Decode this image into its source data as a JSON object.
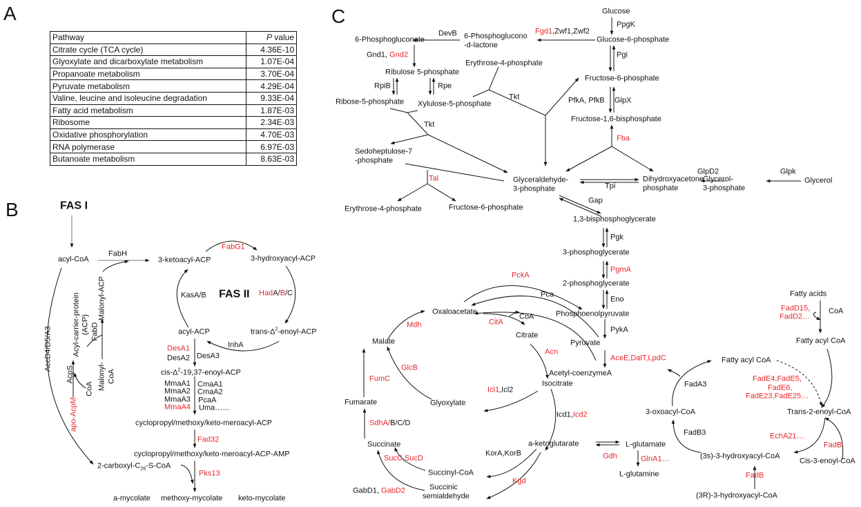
{
  "panel_labels": {
    "a": "A",
    "b": "B",
    "c": "C"
  },
  "table": {
    "headers": [
      "Pathway",
      "P",
      " value"
    ],
    "rows": [
      [
        "Citrate cycle (TCA cycle)",
        "4.36E-10"
      ],
      [
        "Glyoxylate and dicarboxylate metabolism",
        "1.07E-04"
      ],
      [
        "Propanoate metabolism",
        "3.70E-04"
      ],
      [
        "Pyruvate metabolism",
        "4.29E-04"
      ],
      [
        "Valine, leucine and isoleucine degradation",
        "9.33E-04"
      ],
      [
        "Fatty acid metabolism",
        "1.87E-03"
      ],
      [
        "Ribosome",
        "2.34E-03"
      ],
      [
        "Oxidative phosphorylation",
        "4.70E-03"
      ],
      [
        "RNA polymerase",
        "6.97E-03"
      ],
      [
        "Butanoate metabolism",
        "8.63E-03"
      ]
    ]
  },
  "colors": {
    "highlight": "#e8262b",
    "text": "#111111"
  },
  "panel_b": {
    "fas1": "FAS I",
    "fas2": "FAS II",
    "acyl_coa": "acyl-CoA",
    "fabh": "FabH",
    "ketoacyl": "3-ketoacyl-ACP",
    "fabg1": "FabG1",
    "hydroxyacyl": "3-hydroxyacyl-ACP",
    "kasab": "KasA/B",
    "had": "Had",
    "had_a": "A/",
    "had_b": "B",
    "had_c": "/C",
    "trans_a": "trans-Δ",
    "trans_sup": "2",
    "trans_b": "-enoyl-ACP",
    "acyl_acp": "acyl-ACP",
    "inha": "InhA",
    "desa1": "DesA1",
    "desa2": "DesA2",
    "desa3": "DesA3",
    "cis_a": "cis-Δ",
    "cis_sup": "2",
    "cis_b": "-19,37-enoyl-ACP",
    "mmaa1": "MmaA1",
    "mmaa2": "MmaA2",
    "mmaa3": "MmaA3",
    "mmaa4": "MmaA4",
    "cmaa1": "CmaA1",
    "cmaa2": "CmaA2",
    "pcaa": "PcaA",
    "uma": "Uma……",
    "meroacyl": "cyclopropyl/methoxy/keto-meroacyl-ACP",
    "fad32": "Fad32",
    "meroacyl_amp": "cyclopropyl/methoxy/keto-meroacyl-ACP-AMP",
    "carboxyl_a": "2-carboxyl-C",
    "carboxyl_sub": "26",
    "carboxyl_b": "-S-CoA",
    "pks13": "Pks13",
    "a_mycolate": "a-mycolate",
    "methoxy_mycolate": "methoxy-mycolate",
    "keto_mycolate": "keto-mycolate",
    "accd": "AccD4/D5/A3",
    "acp": "Acyl-carrier-protein",
    "acp2": "(ACP)",
    "acps": "AcpS",
    "apo_acpm": "apo-AcpM",
    "coa": "CoA",
    "malonyl_acp": "Malonyl-ACP",
    "fabd": "FabD",
    "malonyl_coa": "Malonyl-",
    "malonyl_coa2": "CoA"
  },
  "panel_c": {
    "glucose": "Glucose",
    "ppgk": "PpgK",
    "fgd1": "Fgd1",
    "zwf": ",Zwf1,Zwf2",
    "g6p": "Glucose-6-phosphate",
    "lactone1": "6-Phosphoglucono",
    "lactone2": "-d-lactone",
    "devb": "DevB",
    "pg6": "6-Phosphogluconate",
    "gnd1": "Gnd1, ",
    "gnd2": "Gnd2",
    "ribulose": "Ribulose 5-phosphate",
    "erythrose_top": "Erythrose-4-phosphate",
    "pgi": "Pgi",
    "f6p": "Fructose-6-phosphate",
    "rpib": "RpiB",
    "rpe": "Rpe",
    "ribose": "Ribose-5-phosphate",
    "xylulose": "Xylulose-5-phosphate",
    "tkt1": "Tkt",
    "pfk": "PfkA, PfkB",
    "glpx": "GlpX",
    "fbp": "Fructose-1,6-bisphosphate",
    "tkt2": "Tkt",
    "fba": "Fba",
    "sedo1": "Sedoheptulose-7",
    "sedo2": "-phosphate",
    "tal": "Tal",
    "gap1": "Glyceraldehyde-",
    "gap2": "3-phosphate",
    "tpi": "Tpi",
    "dhap1": "Dihydroxyacetone",
    "dhap2": "phosphate",
    "glpd2": "GlpD2",
    "g3p1": "Glycerol-",
    "g3p2": "3-phosphate",
    "glpk": "Glpk",
    "glycerol": "Glycerol",
    "erythrose_bot": "Erythrose-4-phosphate",
    "f6p_bot": "Fructose-6-phosphate",
    "gap_enz": "Gap",
    "bpg": "1,3-bisphosphoglycerate",
    "pgk": "Pgk",
    "pg3": "3-phosphoglycerate",
    "pgma": "PgmA",
    "pg2": "2-phosphoglycerate",
    "eno": "Eno",
    "pep": "Phosphoenolpyruvate",
    "pyka": "PykA",
    "pyruvate": "Pyruvate",
    "acee": "AceE,DalT,LpdC",
    "acetyl": "Acetyl-coenzymeA",
    "pcka": "PckA",
    "pca": "Pca",
    "oxaloacetate": "Oxaloacetate",
    "coa": "CoA",
    "cita": "CitA",
    "mdh": "Mdh",
    "citrate": "Citrate",
    "malate": "Malate",
    "acn": "Acn",
    "glcb": "GlcB",
    "fumc": "FumC",
    "icl1": "Icl1",
    "icl2": ",Icl2",
    "isocitrate": "Isocitrate",
    "glyoxylate": "Glyoxylate",
    "fumarate": "Fumarate",
    "sdha": "SdhA/",
    "sdhbcd": "B/C/D",
    "icd1": "Icd1,",
    "icd2": "Icd2",
    "succinate": "Succinate",
    "akg": "a-ketoglutarate",
    "glutamate": "L-glutamate",
    "gdh": "Gdh",
    "glna1": "GlnA1…",
    "kor": "KorA,KorB",
    "suc": "SucC,SucD",
    "succinyl": "Succinyl-CoA",
    "glutamine": "L-glutamine",
    "gabd1": "GabD1, ",
    "gabd2": "GabD2",
    "succinic1": "Succinic",
    "succinic2": "semialdehyde",
    "kgd": "Kgd",
    "fatty_acids": "Fatty acids",
    "fadd15": "FadD15,",
    "fadd2": "FadD2…",
    "coa2": "CoA",
    "fatty_acyl1": "Fatty acyl CoA",
    "fatty_acyl2": "Fatty acyl CoA",
    "fade1": "FadE4,FadE5,",
    "fade2": "FadE6,",
    "fade3": "FadE23,FadE25…",
    "fada3": "FadA3",
    "oxoacyl": "3-oxoacyl-CoA",
    "trans2": "Trans-2-enoyl-CoA",
    "fadb3": "FadB3",
    "echa21": "EchA21…",
    "fadb1": "FadB",
    "hydroxy3s": "(3s)-3-hydroxyacyl-CoA",
    "cis3": "Cis-3-enoyl-CoA",
    "fadb2": "FadB",
    "hydroxy3r": "(3R)-3-hydroxyacyl-CoA"
  }
}
